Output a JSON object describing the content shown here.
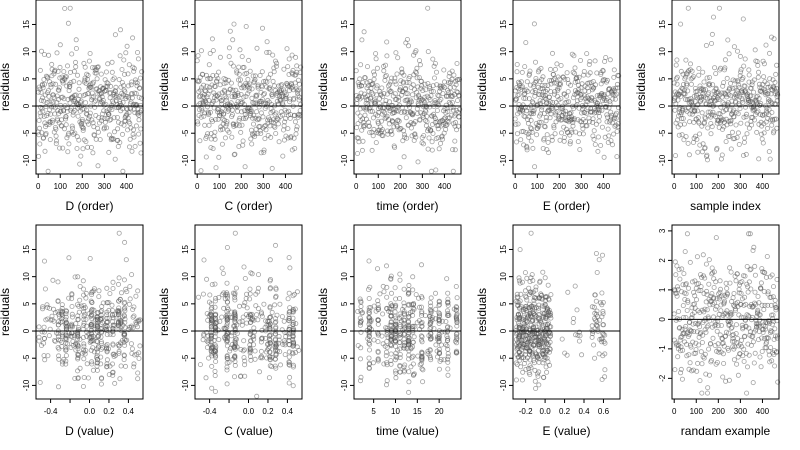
{
  "chart_data": [
    {
      "type": "scatter",
      "xlabel": "D (order)",
      "ylabel": "residuals",
      "xlim": [
        -10,
        475
      ],
      "ylim": [
        -12.5,
        19.5
      ],
      "xticks": [
        0,
        100,
        200,
        300,
        400
      ],
      "yticks": [
        -10,
        -5,
        0,
        5,
        10,
        15
      ],
      "reference_line_y": 0,
      "x_kind": "order",
      "n": 470,
      "y_min": -12,
      "y_max": 18,
      "spread": 4.2,
      "seed": 11
    },
    {
      "type": "scatter",
      "xlabel": "C (order)",
      "ylabel": "residuals",
      "xlim": [
        -10,
        475
      ],
      "ylim": [
        -12.5,
        19.5
      ],
      "xticks": [
        0,
        100,
        200,
        300,
        400
      ],
      "yticks": [
        -10,
        -5,
        0,
        5,
        10,
        15
      ],
      "reference_line_y": 0,
      "x_kind": "order",
      "n": 470,
      "y_min": -12,
      "y_max": 18,
      "spread": 4.2,
      "seed": 23
    },
    {
      "type": "scatter",
      "xlabel": "time (order)",
      "ylabel": "residuals",
      "xlim": [
        -10,
        475
      ],
      "ylim": [
        -12.5,
        19.5
      ],
      "xticks": [
        0,
        100,
        200,
        300,
        400
      ],
      "yticks": [
        -10,
        -5,
        0,
        5,
        10,
        15
      ],
      "reference_line_y": 0,
      "x_kind": "order",
      "n": 470,
      "y_min": -12,
      "y_max": 18,
      "spread": 4.2,
      "seed": 37
    },
    {
      "type": "scatter",
      "xlabel": "E (order)",
      "ylabel": "residuals",
      "xlim": [
        -10,
        475
      ],
      "ylim": [
        -12.5,
        19.5
      ],
      "xticks": [
        0,
        100,
        200,
        300,
        400
      ],
      "yticks": [
        -10,
        -5,
        0,
        5,
        10,
        15
      ],
      "reference_line_y": 0,
      "x_kind": "order",
      "n": 470,
      "y_min": -12,
      "y_max": 18,
      "spread": 4.2,
      "seed": 41
    },
    {
      "type": "scatter",
      "xlabel": "sample index",
      "ylabel": "residuals",
      "xlim": [
        -10,
        475
      ],
      "ylim": [
        -12.5,
        19.5
      ],
      "xticks": [
        0,
        100,
        200,
        300,
        400
      ],
      "yticks": [
        -10,
        -5,
        0,
        5,
        10,
        15
      ],
      "reference_line_y": 0,
      "x_kind": "order",
      "n": 470,
      "y_min": -12,
      "y_max": 18,
      "spread": 4.2,
      "seed": 53
    },
    {
      "type": "scatter",
      "xlabel": "D (value)",
      "ylabel": "residuals",
      "xlim": [
        -0.55,
        0.55
      ],
      "ylim": [
        -12.5,
        19.5
      ],
      "xticks": [
        -0.4,
        -0.2,
        0.0,
        0.2,
        0.4
      ],
      "xtick_labels": [
        "-0.4",
        "",
        "0.0",
        "0.2",
        "0.4"
      ],
      "yticks": [
        -10,
        -5,
        0,
        5,
        10,
        15
      ],
      "reference_line_y": 0,
      "x_kind": "value",
      "x_range": [
        -0.52,
        0.52
      ],
      "x_levels": [
        -0.32,
        -0.28,
        -0.24,
        -0.18,
        -0.12,
        -0.06,
        0.02,
        0.08,
        0.12,
        0.18,
        0.24,
        0.3,
        0.36
      ],
      "level_share": 0.55,
      "n": 470,
      "y_min": -12,
      "y_max": 18,
      "spread": 4.0,
      "seed": 67
    },
    {
      "type": "scatter",
      "xlabel": "C (value)",
      "ylabel": "residuals",
      "xlim": [
        -0.55,
        0.55
      ],
      "ylim": [
        -12.5,
        19.5
      ],
      "xticks": [
        -0.4,
        -0.2,
        0.0,
        0.2,
        0.4
      ],
      "xtick_labels": [
        "-0.4",
        "",
        "0.0",
        "0.2",
        "0.4"
      ],
      "yticks": [
        -10,
        -5,
        0,
        5,
        10,
        15
      ],
      "reference_line_y": 0,
      "x_kind": "value",
      "x_range": [
        -0.52,
        0.52
      ],
      "x_levels": [
        -0.38,
        -0.34,
        -0.22,
        -0.14,
        0.02,
        0.22,
        0.28,
        0.42,
        0.46
      ],
      "level_share": 0.6,
      "n": 470,
      "y_min": -12,
      "y_max": 18,
      "spread": 4.0,
      "seed": 71
    },
    {
      "type": "scatter",
      "xlabel": "time (value)",
      "ylabel": "residuals",
      "xlim": [
        0.5,
        25
      ],
      "ylim": [
        -12.5,
        19.5
      ],
      "xticks": [
        5,
        10,
        15,
        20
      ],
      "yticks": [
        -10,
        -5,
        0,
        5,
        10,
        15
      ],
      "reference_line_y": 0,
      "x_kind": "value",
      "x_range": [
        1,
        24
      ],
      "x_levels": [
        2,
        4,
        6,
        8,
        9,
        10,
        11,
        12,
        13,
        14,
        16,
        18,
        20,
        22,
        24
      ],
      "level_share": 0.75,
      "n": 470,
      "y_min": -12,
      "y_max": 18,
      "spread": 4.0,
      "seed": 83
    },
    {
      "type": "scatter",
      "xlabel": "E (value)",
      "ylabel": "residuals",
      "xlim": [
        -0.33,
        0.77
      ],
      "ylim": [
        -12.5,
        19.5
      ],
      "xticks": [
        -0.2,
        0.0,
        0.2,
        0.4,
        0.6
      ],
      "xtick_labels": [
        "-0.2",
        "0.0",
        "0.2",
        "0.4",
        "0.6"
      ],
      "yticks": [
        -10,
        -5,
        0,
        5,
        10,
        15
      ],
      "reference_line_y": 0,
      "x_kind": "clusters",
      "clusters": [
        {
          "from": -0.3,
          "to": 0.06,
          "share": 0.86
        },
        {
          "from": 0.48,
          "to": 0.62,
          "share": 0.11
        },
        {
          "from": 0.14,
          "to": 0.4,
          "share": 0.03
        }
      ],
      "n": 470,
      "y_min": -12,
      "y_max": 18,
      "spread": 4.2,
      "seed": 97
    },
    {
      "type": "scatter",
      "xlabel": "randam example",
      "ylabel": "",
      "xlim": [
        -10,
        475
      ],
      "ylim": [
        -2.7,
        3.2
      ],
      "xticks": [
        0,
        100,
        200,
        300,
        400
      ],
      "yticks": [
        -2,
        -1,
        0,
        1,
        2,
        3
      ],
      "reference_line_y": 0,
      "x_kind": "order",
      "n": 470,
      "y_min": -2.5,
      "y_max": 2.9,
      "spread": 1.0,
      "seed": 101
    }
  ]
}
